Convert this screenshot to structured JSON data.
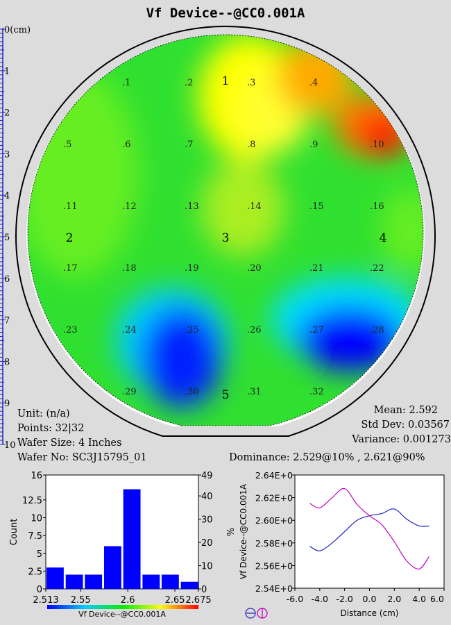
{
  "title": "Vf Device--@CC0.001A",
  "ruler": {
    "labels": [
      "0(cm)",
      "1",
      "2",
      "3",
      "4",
      "5",
      "6",
      "7",
      "8",
      "9",
      "10"
    ]
  },
  "wafer": {
    "sites": [
      {
        "id": 1,
        "label": ".1"
      },
      {
        "id": 2,
        "label": ".2"
      },
      {
        "id": 3,
        "label": ".3"
      },
      {
        "id": 4,
        "label": ".4"
      },
      {
        "id": 5,
        "label": ".5"
      },
      {
        "id": 6,
        "label": ".6"
      },
      {
        "id": 7,
        "label": ".7"
      },
      {
        "id": 8,
        "label": ".8"
      },
      {
        "id": 9,
        "label": ".9"
      },
      {
        "id": 10,
        "label": ".10"
      },
      {
        "id": 11,
        "label": ".11"
      },
      {
        "id": 12,
        "label": ".12"
      },
      {
        "id": 13,
        "label": ".13"
      },
      {
        "id": 14,
        "label": ".14"
      },
      {
        "id": 15,
        "label": ".15"
      },
      {
        "id": 16,
        "label": ".16"
      },
      {
        "id": 17,
        "label": ".17"
      },
      {
        "id": 18,
        "label": ".18"
      },
      {
        "id": 19,
        "label": ".19"
      },
      {
        "id": 20,
        "label": ".20"
      },
      {
        "id": 21,
        "label": ".21"
      },
      {
        "id": 22,
        "label": ".22"
      },
      {
        "id": 23,
        "label": ".23"
      },
      {
        "id": 24,
        "label": ".24"
      },
      {
        "id": 25,
        "label": ".25"
      },
      {
        "id": 26,
        "label": ".26"
      },
      {
        "id": 27,
        "label": ".27"
      },
      {
        "id": 28,
        "label": ".28"
      },
      {
        "id": 29,
        "label": ".29"
      },
      {
        "id": 30,
        "label": ".30"
      },
      {
        "id": 31,
        "label": ".31"
      },
      {
        "id": 32,
        "label": ".32"
      }
    ],
    "region_labels": [
      "1",
      "2",
      "3",
      "4",
      "5"
    ]
  },
  "stats": {
    "unit": "Unit: (n/a)",
    "points": "Points: 32|32",
    "wafer_size": "Wafer Size: 4 Inches",
    "wafer_no": "Wafer No: SC3J15795_01",
    "mean": "Mean: 2.592",
    "std_dev": "Std Dev: 0.03567",
    "variance": "Variance: 0.001273",
    "dominance": "Dominance: 2.529@10% , 2.621@90%"
  },
  "colors": {
    "background": "#dcdcdc",
    "bar": "#0000ff",
    "line_horizontal": "#2020c0",
    "line_vertical": "#c000c0",
    "map_high": "#ff0000",
    "map_low": "#0000ff",
    "map_mid": "#22dd22"
  },
  "chart_data": [
    {
      "type": "bar",
      "name": "histogram",
      "xlabel": "Vf Device--@CC0.001A",
      "ylabel": "Count",
      "y2label": "%",
      "x_ticks": [
        "2.513",
        "2.55",
        "2.6",
        "2.65",
        "2.675"
      ],
      "x_tick_values": [
        2.513,
        2.55,
        2.6,
        2.65,
        2.675
      ],
      "xlim": [
        2.513,
        2.675
      ],
      "y_ticks": [
        "0",
        "2.5",
        "5",
        "7.5",
        "10",
        "12.5",
        "16"
      ],
      "y_tick_values": [
        0,
        2.5,
        5,
        7.5,
        10,
        12.5,
        16
      ],
      "ylim": [
        0,
        16
      ],
      "y2_ticks": [
        "0",
        "10",
        "20",
        "30",
        "40",
        "49"
      ],
      "y2_tick_values": [
        0,
        10,
        20,
        30,
        40,
        49
      ],
      "y2lim": [
        0,
        49
      ],
      "bins": [
        {
          "x0": 2.513,
          "x1": 2.5313,
          "value": 3
        },
        {
          "x0": 2.5334,
          "x1": 2.5517,
          "value": 2
        },
        {
          "x0": 2.5537,
          "x1": 2.572,
          "value": 2
        },
        {
          "x0": 2.5741,
          "x1": 2.5924,
          "value": 6
        },
        {
          "x0": 2.5945,
          "x1": 2.6128,
          "value": 14
        },
        {
          "x0": 2.6149,
          "x1": 2.6332,
          "value": 2
        },
        {
          "x0": 2.6352,
          "x1": 2.6535,
          "value": 2
        },
        {
          "x0": 2.6556,
          "x1": 2.6739,
          "value": 1
        }
      ]
    },
    {
      "type": "line",
      "name": "cross-section",
      "xlabel": "Distance (cm)",
      "ylabel": "Vf Device--@CC0.001A",
      "x_ticks": [
        "-6.0",
        "-4.0",
        "-2.0",
        "0.0",
        "2.0",
        "4.0",
        "6.0"
      ],
      "x_tick_values": [
        -6,
        -4,
        -2,
        0,
        2,
        4,
        6
      ],
      "xlim": [
        -6,
        6
      ],
      "y_ticks": [
        "2.54E+0",
        "2.56E+0",
        "2.58E+0",
        "2.60E+0",
        "2.62E+0",
        "2.64E+0"
      ],
      "y_tick_values": [
        2.54,
        2.56,
        2.58,
        2.6,
        2.62,
        2.64
      ],
      "ylim": [
        2.54,
        2.64
      ],
      "series": [
        {
          "key": "horizontal",
          "x": [
            -4.8,
            -4.0,
            -3.0,
            -2.0,
            -1.0,
            0.0,
            1.0,
            2.0,
            3.0,
            4.0,
            4.8
          ],
          "y": [
            2.577,
            2.573,
            2.58,
            2.59,
            2.6,
            2.604,
            2.606,
            2.61,
            2.601,
            2.595,
            2.595
          ]
        },
        {
          "key": "vertical",
          "x": [
            -4.8,
            -4.0,
            -3.0,
            -2.0,
            -1.0,
            0.0,
            1.0,
            2.0,
            3.0,
            4.0,
            4.8
          ],
          "y": [
            2.615,
            2.611,
            2.62,
            2.628,
            2.614,
            2.604,
            2.596,
            2.581,
            2.564,
            2.557,
            2.568
          ]
        }
      ]
    }
  ]
}
